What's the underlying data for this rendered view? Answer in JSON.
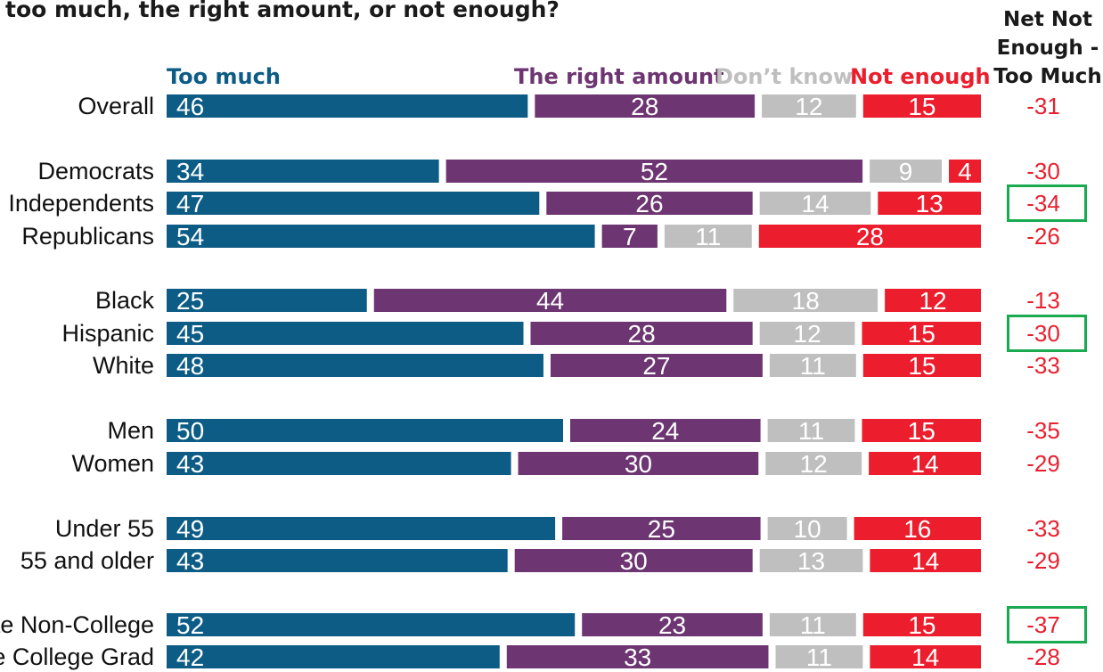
{
  "chart_data": {
    "type": "bar",
    "stacked": true,
    "orientation": "horizontal",
    "title": "too much, the right amount, or not enough?",
    "net_header": "Net Not Enough - Too Much",
    "series": [
      {
        "name": "Too much",
        "color": "#0d5c86",
        "values": [
          46,
          34,
          47,
          54,
          25,
          45,
          48,
          50,
          43,
          49,
          43,
          52,
          42
        ]
      },
      {
        "name": "The right amount",
        "color": "#6d3571",
        "values": [
          28,
          52,
          26,
          7,
          44,
          28,
          27,
          24,
          30,
          25,
          30,
          23,
          33
        ]
      },
      {
        "name": "Don’t know",
        "color": "#bfbfbf",
        "values": [
          12,
          9,
          14,
          11,
          18,
          12,
          11,
          11,
          12,
          10,
          13,
          11,
          11
        ]
      },
      {
        "name": "Not enough",
        "color": "#ec1d2c",
        "values": [
          15,
          4,
          13,
          28,
          12,
          15,
          15,
          15,
          14,
          16,
          14,
          15,
          14
        ]
      }
    ],
    "categories": [
      "Overall",
      "Democrats",
      "Independents",
      "Republicans",
      "Black",
      "Hispanic",
      "White",
      "Men",
      "Women",
      "Under 55",
      "55 and older",
      "White Non-College",
      "White College Grad"
    ],
    "groups": [
      [
        0
      ],
      [
        1,
        2,
        3
      ],
      [
        4,
        5,
        6
      ],
      [
        7,
        8
      ],
      [
        9,
        10
      ],
      [
        11,
        12
      ]
    ],
    "net": [
      "-31",
      "-30",
      "-34",
      "-26",
      "-13",
      "-30",
      "-33",
      "-35",
      "-29",
      "-33",
      "-29",
      "-37",
      "-28"
    ],
    "highlighted_net": [
      2,
      5,
      11
    ],
    "colors": {
      "net": "#e8202e",
      "highlight_box": "#1aaa50",
      "label": "#111111",
      "bar_text": "#ffffff"
    }
  }
}
